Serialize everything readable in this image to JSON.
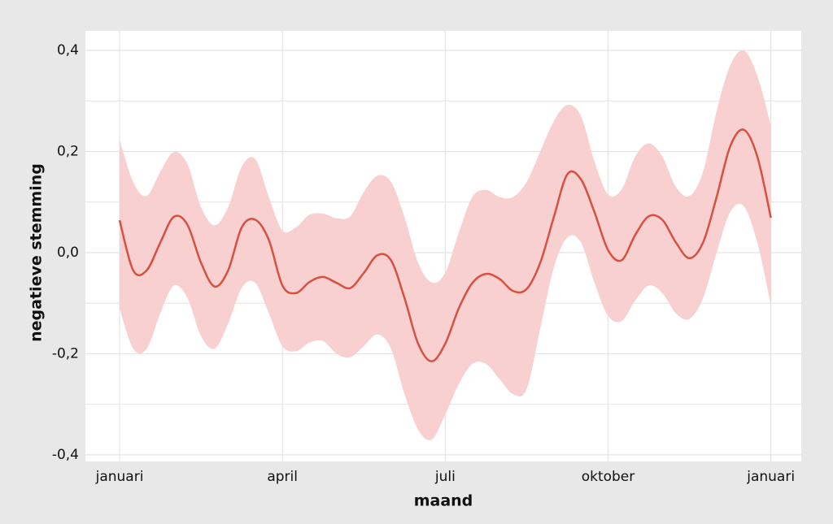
{
  "chart_data": {
    "type": "line",
    "x_label": "maand",
    "y_label": "negatieve stemming",
    "x": [
      0,
      0.25,
      0.5,
      0.75,
      1,
      1.25,
      1.5,
      1.75,
      2,
      2.25,
      2.5,
      2.75,
      3,
      3.25,
      3.5,
      3.75,
      4,
      4.25,
      4.5,
      4.75,
      5,
      5.25,
      5.5,
      5.75,
      6,
      6.25,
      6.5,
      6.75,
      7,
      7.25,
      7.5,
      7.75,
      8,
      8.25,
      8.5,
      8.75,
      9,
      9.25,
      9.5,
      9.75,
      10,
      10.25,
      10.5,
      10.75,
      11,
      11.25,
      11.5,
      11.75,
      12
    ],
    "series": [
      {
        "color": "#d9503f",
        "band_color": "#f8d0d0",
        "values": [
          0.064,
          -0.035,
          -0.035,
          0.02,
          0.071,
          0.055,
          -0.02,
          -0.067,
          -0.035,
          0.05,
          0.065,
          0.025,
          -0.065,
          -0.08,
          -0.058,
          -0.048,
          -0.06,
          -0.07,
          -0.04,
          -0.005,
          -0.015,
          -0.09,
          -0.18,
          -0.215,
          -0.18,
          -0.11,
          -0.06,
          -0.042,
          -0.052,
          -0.076,
          -0.072,
          -0.02,
          0.07,
          0.155,
          0.145,
          0.08,
          0.005,
          -0.015,
          0.035,
          0.072,
          0.065,
          0.02,
          -0.011,
          0.02,
          0.11,
          0.21,
          0.243,
          0.19,
          0.069
        ],
        "upper": [
          0.223,
          0.14,
          0.112,
          0.16,
          0.199,
          0.175,
          0.09,
          0.054,
          0.09,
          0.17,
          0.185,
          0.11,
          0.044,
          0.05,
          0.075,
          0.077,
          0.068,
          0.072,
          0.12,
          0.152,
          0.14,
          0.07,
          -0.02,
          -0.059,
          -0.04,
          0.04,
          0.11,
          0.124,
          0.11,
          0.11,
          0.14,
          0.2,
          0.26,
          0.292,
          0.27,
          0.18,
          0.115,
          0.125,
          0.19,
          0.216,
          0.19,
          0.13,
          0.112,
          0.16,
          0.28,
          0.37,
          0.4,
          0.35,
          0.251
        ],
        "lower": [
          -0.111,
          -0.19,
          -0.19,
          -0.12,
          -0.065,
          -0.09,
          -0.165,
          -0.19,
          -0.14,
          -0.07,
          -0.06,
          -0.12,
          -0.185,
          -0.195,
          -0.178,
          -0.175,
          -0.2,
          -0.207,
          -0.185,
          -0.162,
          -0.19,
          -0.28,
          -0.35,
          -0.37,
          -0.32,
          -0.26,
          -0.22,
          -0.22,
          -0.25,
          -0.28,
          -0.27,
          -0.15,
          -0.03,
          0.03,
          0.02,
          -0.06,
          -0.125,
          -0.135,
          -0.095,
          -0.065,
          -0.08,
          -0.12,
          -0.131,
          -0.09,
          0.0,
          0.08,
          0.092,
          0.02,
          -0.103
        ]
      }
    ],
    "xlim": [
      -0.63,
      12.56
    ],
    "ylim": [
      -0.413,
      0.4386
    ],
    "xticks": [
      {
        "value": 0,
        "label": "januari"
      },
      {
        "value": 3,
        "label": "april"
      },
      {
        "value": 6,
        "label": "juli"
      },
      {
        "value": 9,
        "label": "oktober"
      },
      {
        "value": 12,
        "label": "januari"
      }
    ],
    "yticks": [
      {
        "value": -0.4,
        "label": "-0,4"
      },
      {
        "value": -0.2,
        "label": "-0,2"
      },
      {
        "value": 0,
        "label": "0,0"
      },
      {
        "value": 0.2,
        "label": "0,2"
      },
      {
        "value": 0.4,
        "label": "0,4"
      }
    ],
    "yminor": [
      -0.3,
      -0.1,
      0.1,
      0.3
    ],
    "grid": true
  }
}
